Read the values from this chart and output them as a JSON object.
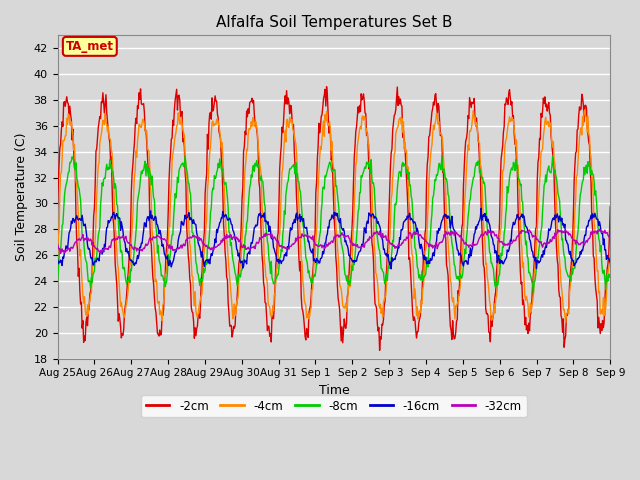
{
  "title": "Alfalfa Soil Temperatures Set B",
  "xlabel": "Time",
  "ylabel": "Soil Temperature (C)",
  "ylim": [
    18,
    43
  ],
  "yticks": [
    18,
    20,
    22,
    24,
    26,
    28,
    30,
    32,
    34,
    36,
    38,
    40,
    42
  ],
  "xtick_labels": [
    "Aug 25",
    "Aug 26",
    "Aug 27",
    "Aug 28",
    "Aug 29",
    "Aug 30",
    "Aug 31",
    "Sep 1",
    "Sep 2",
    "Sep 3",
    "Sep 4",
    "Sep 5",
    "Sep 6",
    "Sep 7",
    "Sep 8",
    "Sep 9"
  ],
  "colors": {
    "-2cm": "#dd0000",
    "-4cm": "#ff8800",
    "-8cm": "#00cc00",
    "-16cm": "#0000cc",
    "-32cm": "#bb00bb"
  },
  "annotation_text": "TA_met",
  "annotation_color": "#cc0000",
  "annotation_bg": "#ffff99",
  "plot_bg": "#d8d8d8",
  "grid_color": "#ffffff",
  "n_days": 15,
  "samples_per_day": 48,
  "means": [
    29.0,
    29.0,
    28.5,
    27.2,
    26.8
  ],
  "amps": [
    9.0,
    7.5,
    4.5,
    1.8,
    0.5
  ],
  "phases": [
    0.0,
    0.05,
    0.15,
    0.3,
    0.45
  ],
  "noise_sd": [
    0.5,
    0.4,
    0.3,
    0.2,
    0.1
  ]
}
